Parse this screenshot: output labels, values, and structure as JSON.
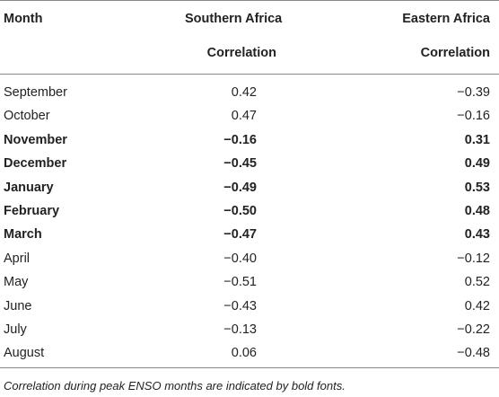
{
  "headers": {
    "month": "Month",
    "southern_africa": "Southern Africa",
    "eastern_africa": "Eastern Africa",
    "southern_sub": "Correlation",
    "eastern_sub": "Correlation"
  },
  "rows": [
    {
      "month": "September",
      "southern": "0.42",
      "eastern": "−0.39",
      "bold": false
    },
    {
      "month": "October",
      "southern": "0.47",
      "eastern": "−0.16",
      "bold": false
    },
    {
      "month": "November",
      "southern": "−0.16",
      "eastern": "0.31",
      "bold": true
    },
    {
      "month": "December",
      "southern": "−0.45",
      "eastern": "0.49",
      "bold": true
    },
    {
      "month": "January",
      "southern": "−0.49",
      "eastern": "0.53",
      "bold": true
    },
    {
      "month": "February",
      "southern": "−0.50",
      "eastern": "0.48",
      "bold": true
    },
    {
      "month": "March",
      "southern": "−0.47",
      "eastern": "0.43",
      "bold": true
    },
    {
      "month": "April",
      "southern": "−0.40",
      "eastern": "−0.12",
      "bold": false
    },
    {
      "month": "May",
      "southern": "−0.51",
      "eastern": "0.52",
      "bold": false
    },
    {
      "month": "June",
      "southern": "−0.43",
      "eastern": "0.42",
      "bold": false
    },
    {
      "month": "July",
      "southern": "−0.13",
      "eastern": "−0.22",
      "bold": false
    },
    {
      "month": "August",
      "southern": "0.06",
      "eastern": "−0.48",
      "bold": false
    }
  ],
  "footnote": "Correlation during peak ENSO months are indicated by bold fonts."
}
